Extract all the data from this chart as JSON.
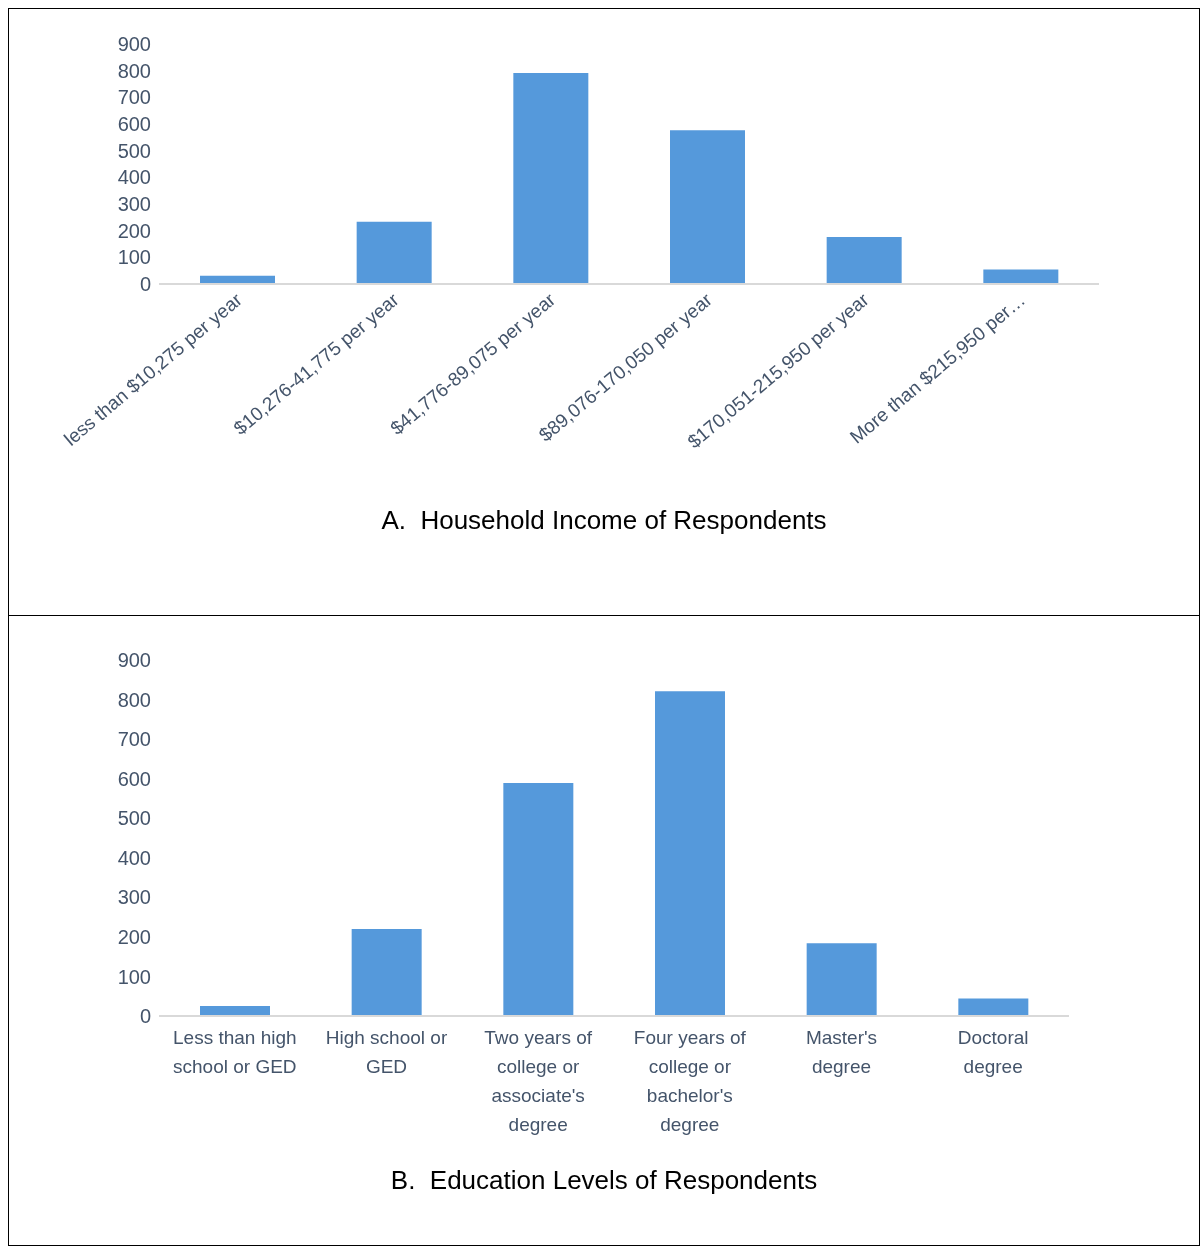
{
  "chart_data": [
    {
      "type": "bar",
      "title": "A.  Household Income of Respondents",
      "categories": [
        "less than $10,275 per year",
        "$10,276-41,775 per year",
        "$41,776-89,075 per year",
        "$89,076-170,050 per year",
        "$170,051-215,950 per year",
        "More than $215,950 per…"
      ],
      "values": [
        31,
        233,
        791,
        577,
        176,
        54
      ],
      "color": "#5599db",
      "ylim": [
        0,
        900
      ],
      "yticks": [
        0,
        100,
        200,
        300,
        400,
        500,
        600,
        700,
        800,
        900
      ],
      "grid": false,
      "legend": false
    },
    {
      "type": "bar",
      "title": "B.  Education Levels of Respondents",
      "categories": [
        "Less than high school or GED",
        "High school or GED",
        "Two years of college or associate's degree",
        "Four years of college or bachelor's degree",
        "Master's degree",
        "Doctoral degree"
      ],
      "values": [
        25,
        220,
        589,
        821,
        184,
        44
      ],
      "color": "#5599db",
      "ylim": [
        0,
        900
      ],
      "yticks": [
        0,
        100,
        200,
        300,
        400,
        500,
        600,
        700,
        800,
        900
      ],
      "grid": false,
      "legend": false
    }
  ]
}
